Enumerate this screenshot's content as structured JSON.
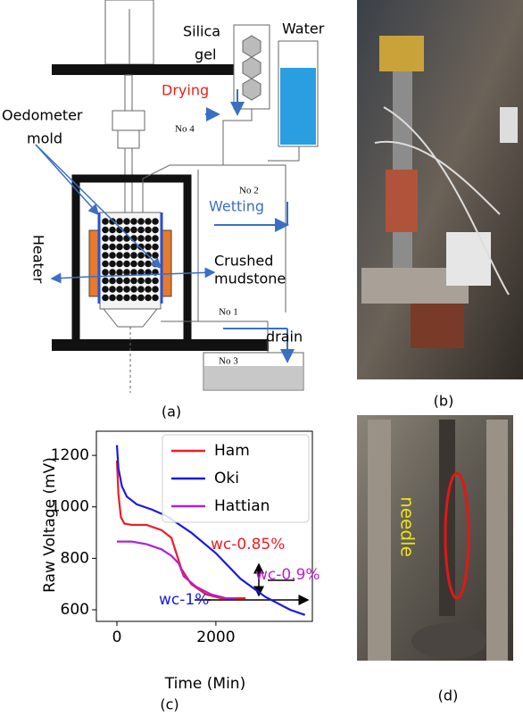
{
  "panel_labels": [
    "(a)",
    "(b)",
    "(c)",
    "(d)"
  ],
  "diagram": {
    "silica_gel": [
      "Silica",
      "gel"
    ],
    "water": "Water",
    "drying": "Drying",
    "no4": "No 4",
    "oedometer_mold": [
      "Oedometer",
      "mold"
    ],
    "no2": "No 2",
    "wetting": "Wetting",
    "heater": "Heater",
    "crushed_mudstone": [
      "Crushed",
      "mudstone"
    ],
    "no1": "No 1",
    "drain": "drain",
    "no3": "No 3"
  },
  "photo_d": {
    "label": "needle"
  },
  "chart_data": {
    "type": "line",
    "xlabel": "Time (Min)",
    "ylabel": "Raw Voltage (mV)",
    "xlim": [
      -415,
      3950
    ],
    "xticks": [
      0,
      2000
    ],
    "ylim": [
      555,
      1294
    ],
    "yticks": [
      600,
      800,
      1000,
      1200
    ],
    "grid": false,
    "legend": "upper right",
    "series": [
      {
        "name": "Ham",
        "color": "#ee1c24",
        "x": [
          0,
          30,
          80,
          150,
          300,
          600,
          900,
          1100,
          1200,
          1300,
          1500,
          1800,
          2100,
          2600
        ],
        "values": [
          1180,
          1050,
          960,
          935,
          930,
          930,
          910,
          880,
          820,
          760,
          700,
          660,
          645,
          645
        ]
      },
      {
        "name": "Oki",
        "color": "#1a1ae6",
        "x": [
          0,
          30,
          100,
          200,
          400,
          700,
          1000,
          1500,
          2000,
          2500,
          3000,
          3500,
          3800
        ],
        "values": [
          1240,
          1150,
          1080,
          1040,
          1010,
          990,
          965,
          900,
          820,
          720,
          650,
          600,
          580
        ]
      },
      {
        "name": "Hattian",
        "color": "#b21fd6",
        "x": [
          0,
          300,
          600,
          900,
          1100,
          1250,
          1350,
          1600,
          1900,
          2200,
          2400
        ],
        "values": [
          865,
          865,
          855,
          835,
          810,
          780,
          730,
          690,
          660,
          645,
          645
        ]
      }
    ],
    "annotations": [
      {
        "text": "wc-0.85%",
        "color": "#ee1c24"
      },
      {
        "text": "wc-0.9%",
        "color": "#c020d0"
      },
      {
        "text": "wc-1%",
        "color": "#1a1ae6"
      }
    ]
  }
}
